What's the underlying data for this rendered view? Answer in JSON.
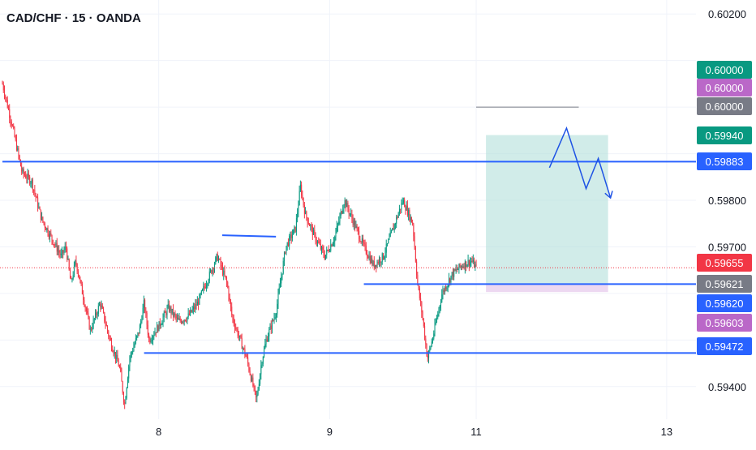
{
  "header": {
    "title": "CAD/CHF · 15 · OANDA"
  },
  "colors": {
    "bull": "#089981",
    "bear": "#f23645",
    "grid": "#f0f3fa",
    "line": "#2962ff",
    "line_dark": "#1848cc",
    "target_zone": "#b2dfdb",
    "stop_zone": "#e1bee7",
    "projection": "#1e53e5"
  },
  "chart_data": {
    "type": "candlestick",
    "symbol": "CAD/CHF",
    "interval": "15",
    "source": "OANDA",
    "ylim": [
      0.5933,
      0.6023
    ],
    "y_ticks": [
      "0.60200",
      "0.59800",
      "0.59700",
      "0.59400"
    ],
    "x_ticks": [
      {
        "label": "8",
        "t": 32
      },
      {
        "label": "9",
        "t": 67
      },
      {
        "label": "11",
        "t": 97
      },
      {
        "label": "13",
        "t": 136
      }
    ],
    "x_range": [
      0,
      142
    ],
    "price_badges": [
      {
        "label": "0.60000",
        "value": 0.6,
        "color": "#089981"
      },
      {
        "label": "0.60000",
        "value": 0.6,
        "color": "#ba68c8"
      },
      {
        "label": "0.60000",
        "value": 0.6,
        "color": "#787b86"
      },
      {
        "label": "0.59940",
        "value": 0.5994,
        "color": "#089981"
      },
      {
        "label": "0.59883",
        "value": 0.59883,
        "color": "#2962ff"
      },
      {
        "label": "0.59655",
        "value": 0.59655,
        "color": "#f23645"
      },
      {
        "label": "0.59621",
        "value": 0.59621,
        "color": "#787b86"
      },
      {
        "label": "0.59620",
        "value": 0.5962,
        "color": "#2962ff"
      },
      {
        "label": "0.59603",
        "value": 0.59603,
        "color": "#ba68c8"
      },
      {
        "label": "0.59472",
        "value": 0.59472,
        "color": "#2962ff"
      }
    ],
    "horizontal_lines": [
      {
        "name": "resistance",
        "value": 0.59883,
        "t_start": 0,
        "t_end": 142
      },
      {
        "name": "support-upper",
        "value": 0.5962,
        "t_start": 74,
        "t_end": 142
      },
      {
        "name": "support-lower",
        "value": 0.59472,
        "t_start": 29,
        "t_end": 142
      }
    ],
    "segments": [
      {
        "name": "range-high-line",
        "t1": 45,
        "v1": 0.59725,
        "t2": 56,
        "v2": 0.59722
      },
      {
        "name": "target-line",
        "t1": 97,
        "v1": 0.6,
        "t2": 118,
        "v2": 0.6
      }
    ],
    "position": {
      "entry": 0.5962,
      "target": 0.5994,
      "stop": 0.59603,
      "t_start": 99,
      "t_end": 124
    },
    "projection_path": [
      {
        "t": 112,
        "v": 0.5987
      },
      {
        "t": 115.5,
        "v": 0.59955
      },
      {
        "t": 119.5,
        "v": 0.59825
      },
      {
        "t": 122,
        "v": 0.5989
      },
      {
        "t": 124.5,
        "v": 0.59805
      }
    ],
    "last_price": 0.59655,
    "close_path": [
      [
        0,
        0.6005
      ],
      [
        2,
        0.5996
      ],
      [
        4,
        0.5986
      ],
      [
        6,
        0.5984
      ],
      [
        8,
        0.5976
      ],
      [
        10,
        0.5972
      ],
      [
        12,
        0.5968
      ],
      [
        13,
        0.597
      ],
      [
        14,
        0.5962
      ],
      [
        15,
        0.5967
      ],
      [
        16,
        0.5962
      ],
      [
        18,
        0.5952
      ],
      [
        20,
        0.5958
      ],
      [
        22,
        0.595
      ],
      [
        24,
        0.5944
      ],
      [
        25,
        0.5936
      ],
      [
        26,
        0.5946
      ],
      [
        28,
        0.5952
      ],
      [
        29,
        0.5958
      ],
      [
        30,
        0.595
      ],
      [
        32,
        0.5953
      ],
      [
        34,
        0.5957
      ],
      [
        36,
        0.5954
      ],
      [
        38,
        0.5955
      ],
      [
        40,
        0.5958
      ],
      [
        42,
        0.5963
      ],
      [
        44,
        0.5968
      ],
      [
        46,
        0.5962
      ],
      [
        47,
        0.5955
      ],
      [
        48,
        0.5952
      ],
      [
        50,
        0.5946
      ],
      [
        52,
        0.5937
      ],
      [
        53,
        0.5945
      ],
      [
        54,
        0.595
      ],
      [
        56,
        0.5956
      ],
      [
        58,
        0.597
      ],
      [
        60,
        0.5974
      ],
      [
        61,
        0.5983
      ],
      [
        62,
        0.5977
      ],
      [
        64,
        0.5972
      ],
      [
        66,
        0.5968
      ],
      [
        68,
        0.5972
      ],
      [
        70,
        0.598
      ],
      [
        72,
        0.5975
      ],
      [
        74,
        0.597
      ],
      [
        76,
        0.5966
      ],
      [
        78,
        0.5968
      ],
      [
        80,
        0.5974
      ],
      [
        82,
        0.598
      ],
      [
        84,
        0.5975
      ],
      [
        85,
        0.5962
      ],
      [
        86,
        0.5955
      ],
      [
        87,
        0.5946
      ],
      [
        88,
        0.595
      ],
      [
        90,
        0.596
      ],
      [
        92,
        0.5964
      ],
      [
        94,
        0.5966
      ],
      [
        96,
        0.5967
      ],
      [
        97,
        0.59655
      ]
    ],
    "candle_count": 98,
    "x_data_end": 97
  }
}
